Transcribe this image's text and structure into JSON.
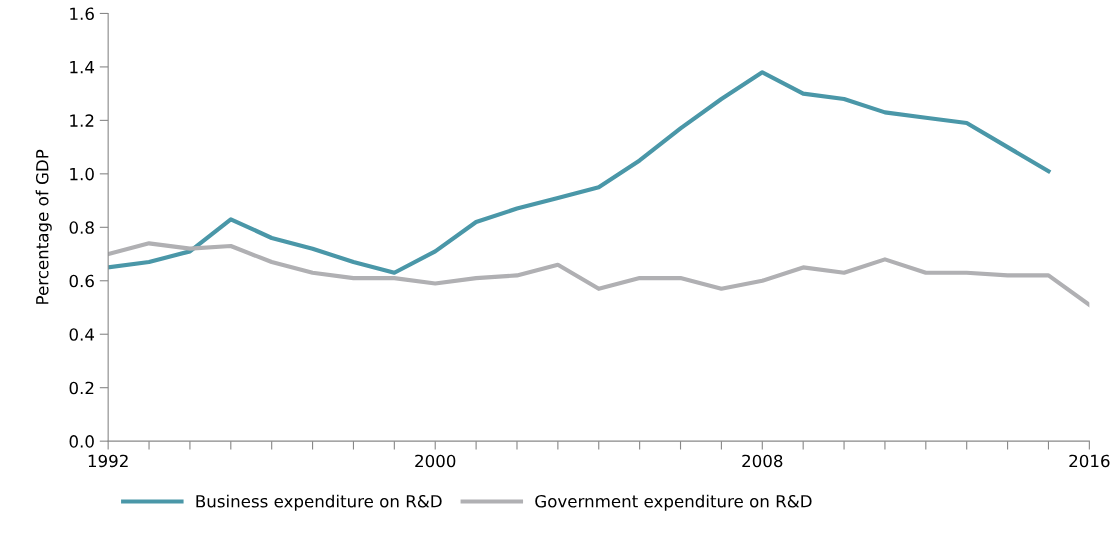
{
  "chart_data": {
    "type": "line",
    "ylabel": "Percentage of GDP",
    "x": [
      1992,
      1993,
      1994,
      1995,
      1996,
      1997,
      1998,
      1999,
      2000,
      2001,
      2002,
      2003,
      2004,
      2005,
      2006,
      2007,
      2008,
      2009,
      2010,
      2011,
      2012,
      2013,
      2014,
      2015,
      2016
    ],
    "series": [
      {
        "name": "Business expenditure on R&D",
        "color": "#4a97a8",
        "values": [
          0.65,
          0.67,
          0.71,
          0.83,
          0.76,
          0.72,
          0.67,
          0.63,
          0.71,
          0.82,
          0.87,
          0.91,
          0.95,
          1.05,
          1.17,
          1.28,
          1.38,
          1.3,
          1.28,
          1.23,
          1.21,
          1.19,
          1.1,
          1.01,
          null
        ]
      },
      {
        "name": "Government expenditure on R&D",
        "color": "#b0b0b3",
        "values": [
          0.7,
          0.74,
          0.72,
          0.73,
          0.67,
          0.63,
          0.61,
          0.61,
          0.59,
          0.61,
          0.62,
          0.66,
          0.57,
          0.61,
          0.61,
          0.57,
          0.6,
          0.65,
          0.63,
          0.68,
          0.63,
          0.63,
          0.62,
          0.62,
          0.51
        ]
      }
    ],
    "xlim": [
      1992,
      2016
    ],
    "xticks": [
      1992,
      {
        "value": 1993,
        "label": null
      },
      {
        "value": 1994,
        "label": null
      },
      {
        "value": 1995,
        "label": null
      },
      {
        "value": 1996,
        "label": null
      },
      {
        "value": 1997,
        "label": null
      },
      {
        "value": 1998,
        "label": null
      },
      {
        "value": 1999,
        "label": null
      },
      2000,
      {
        "value": 2001,
        "label": null
      },
      {
        "value": 2002,
        "label": null
      },
      {
        "value": 2003,
        "label": null
      },
      {
        "value": 2004,
        "label": null
      },
      {
        "value": 2005,
        "label": null
      },
      {
        "value": 2006,
        "label": null
      },
      {
        "value": 2007,
        "label": null
      },
      2008,
      {
        "value": 2009,
        "label": null
      },
      {
        "value": 2010,
        "label": null
      },
      {
        "value": 2011,
        "label": null
      },
      {
        "value": 2012,
        "label": null
      },
      {
        "value": 2013,
        "label": null
      },
      {
        "value": 2014,
        "label": null
      },
      {
        "value": 2015,
        "label": null
      },
      2016
    ],
    "ylim": [
      0,
      1.6
    ],
    "yticks": [
      {
        "value": 0,
        "label": "0.0"
      },
      {
        "value": 0.2,
        "label": "0.2"
      },
      {
        "value": 0.4,
        "label": "0.4"
      },
      {
        "value": 0.6,
        "label": "0.6"
      },
      {
        "value": 0.8,
        "label": "0.8"
      },
      {
        "value": 1.0,
        "label": "1.0"
      },
      {
        "value": 1.2,
        "label": "1.2"
      },
      {
        "value": 1.4,
        "label": "1.4"
      },
      {
        "value": 1.6,
        "label": "1.6"
      }
    ],
    "grid": false,
    "legend": "bottom left",
    "marker": "none",
    "line_style": "solid"
  }
}
